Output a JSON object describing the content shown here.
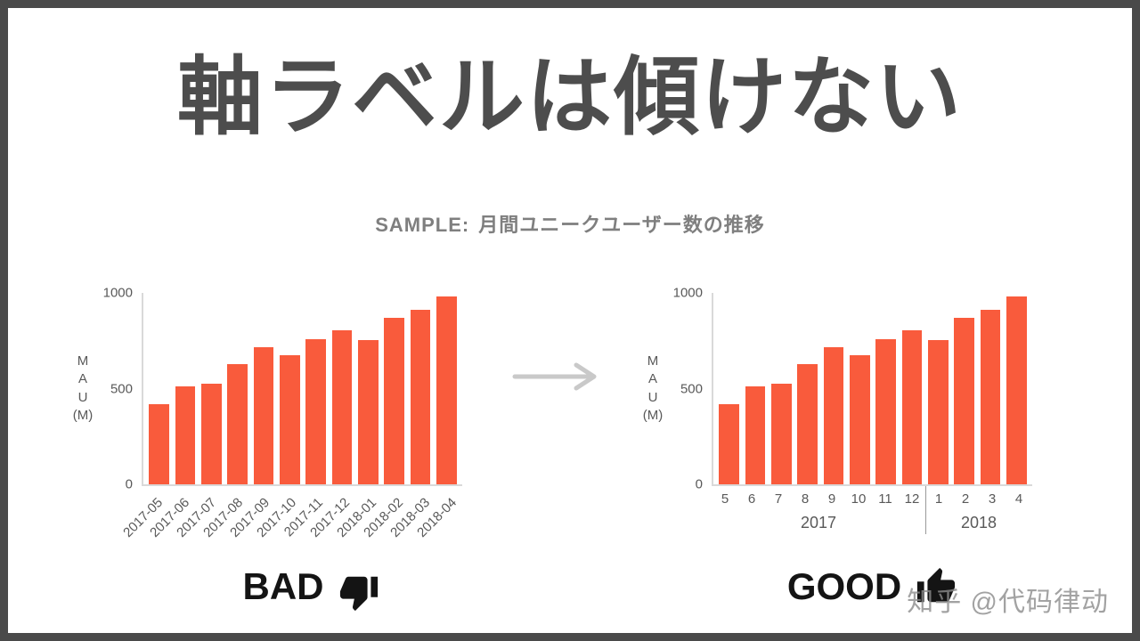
{
  "slide": {
    "title": "軸ラベルは傾けない",
    "subtitle_label": "SAMPLE:",
    "subtitle_text": "月間ユニークユーザー数の推移",
    "bad_label": "BAD",
    "good_label": "GOOD",
    "watermark": "知乎 @代码律动"
  },
  "colors": {
    "bar": "#f95b3c",
    "axis": "#d9d9d9",
    "tick_text": "#595959",
    "title_text": "#4d4d4d",
    "arrow": "#c9c9c9",
    "border": "#4a4a4a"
  },
  "chart_data": [
    {
      "type": "bar",
      "name": "bad",
      "title": "BAD",
      "ylabel": "MAU (M)",
      "ylabel_lines": [
        "M",
        "A",
        "U",
        "(M)"
      ],
      "categories": [
        "2017-05",
        "2017-06",
        "2017-07",
        "2017-08",
        "2017-09",
        "2017-10",
        "2017-11",
        "2017-12",
        "2018-01",
        "2018-02",
        "2018-03",
        "2018-04"
      ],
      "values": [
        420,
        510,
        525,
        630,
        715,
        675,
        760,
        805,
        755,
        870,
        910,
        980
      ],
      "yticks": [
        0,
        500,
        1000
      ],
      "ylim": [
        0,
        1000
      ],
      "xtick_rotation": -45,
      "grid": false,
      "legend": false
    },
    {
      "type": "bar",
      "name": "good",
      "title": "GOOD",
      "ylabel": "MAU (M)",
      "ylabel_lines": [
        "M",
        "A",
        "U",
        "(M)"
      ],
      "categories": [
        "5",
        "6",
        "7",
        "8",
        "9",
        "10",
        "11",
        "12",
        "1",
        "2",
        "3",
        "4"
      ],
      "groups": [
        {
          "label": "2017",
          "span": 8
        },
        {
          "label": "2018",
          "span": 4
        }
      ],
      "values": [
        420,
        510,
        525,
        630,
        715,
        675,
        760,
        805,
        755,
        870,
        910,
        980
      ],
      "yticks": [
        0,
        500,
        1000
      ],
      "ylim": [
        0,
        1000
      ],
      "xtick_rotation": 0,
      "grid": false,
      "legend": false
    }
  ]
}
